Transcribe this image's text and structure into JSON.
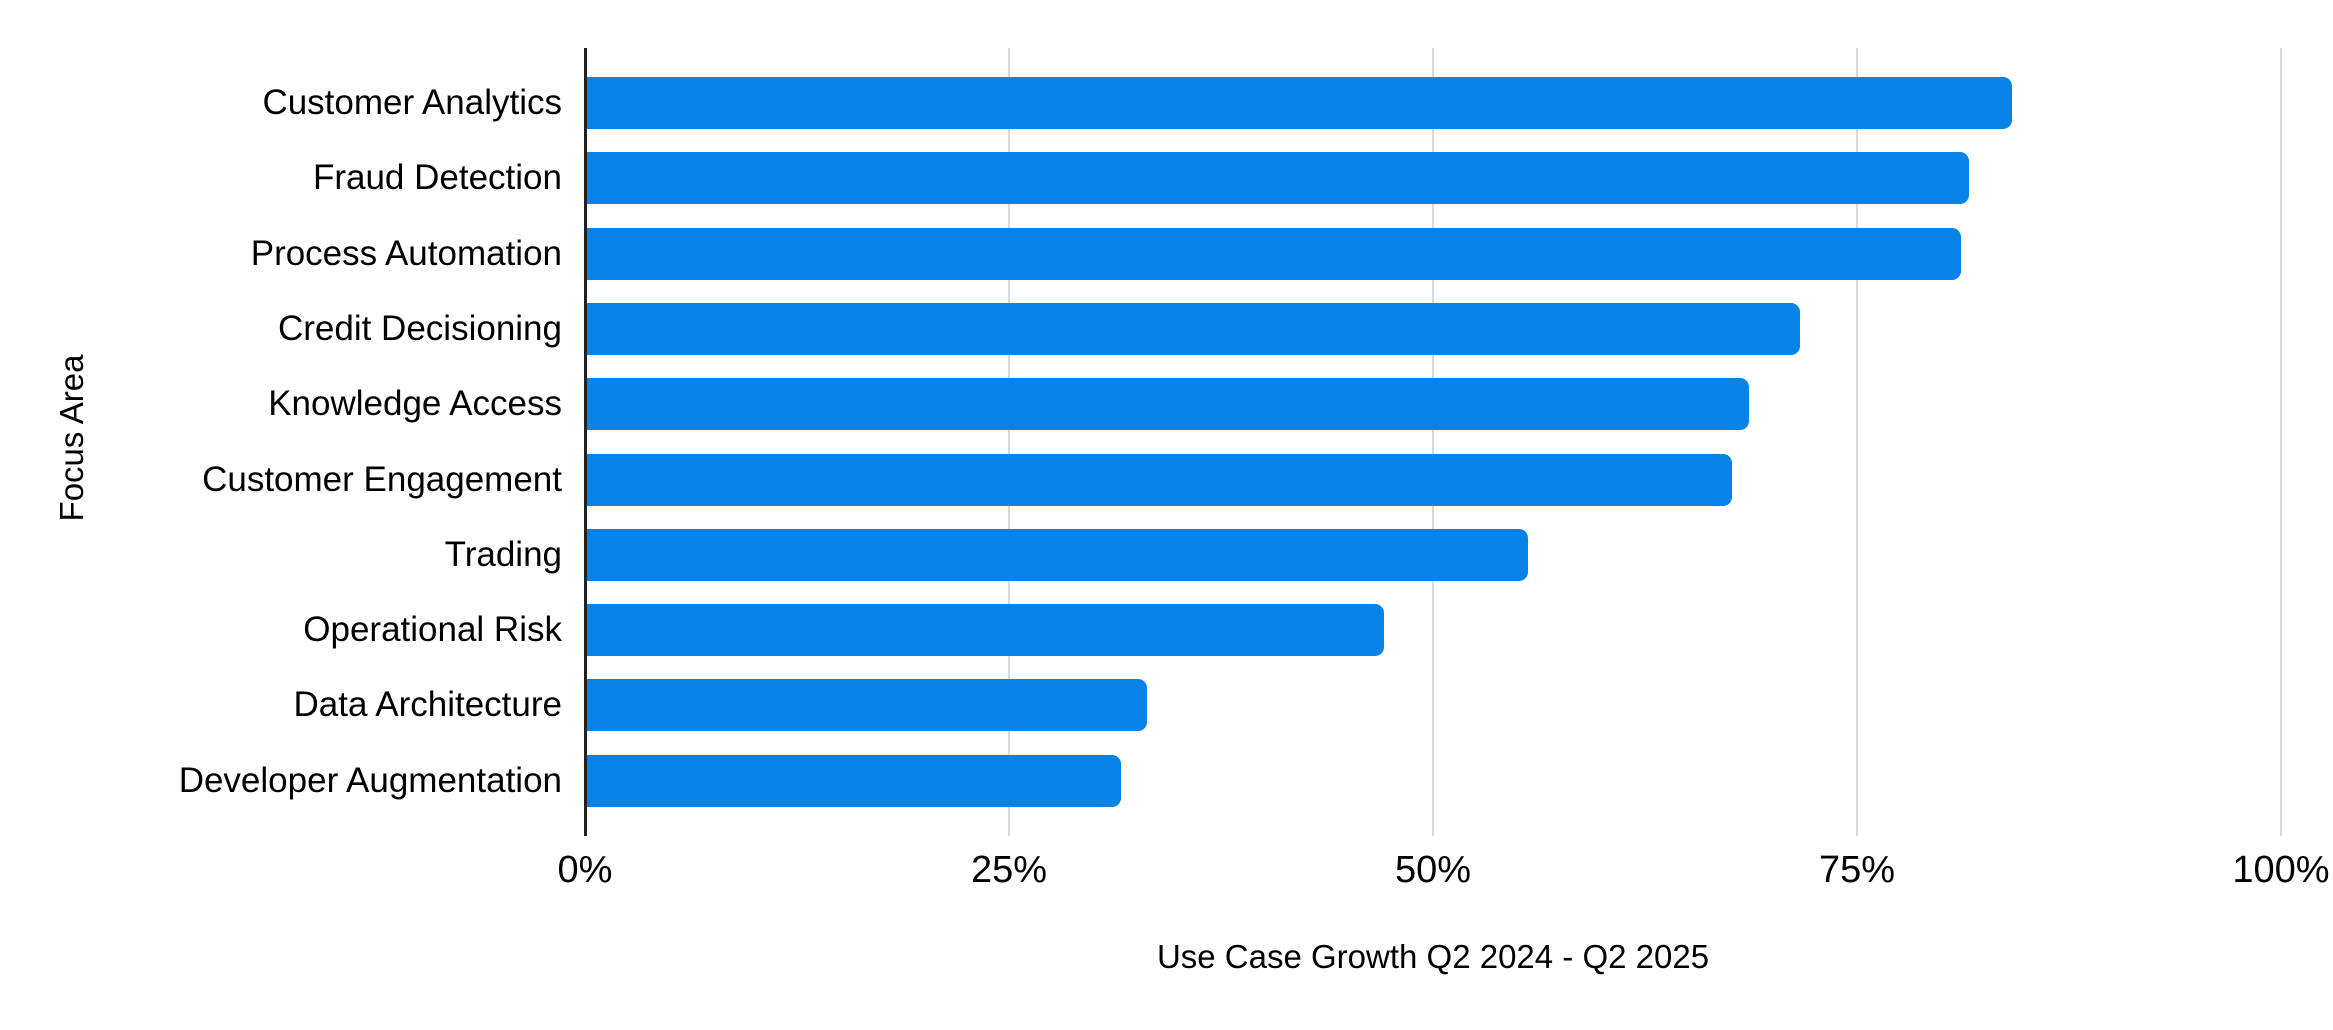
{
  "chart_data": {
    "type": "bar",
    "orientation": "horizontal",
    "title": "",
    "xlabel": "Use Case Growth Q2 2024 - Q2 2025",
    "ylabel": "Focus Area",
    "categories": [
      "Customer Analytics",
      "Fraud Detection",
      "Process Automation",
      "Credit Decisioning",
      "Knowledge Access",
      "Customer Engagement",
      "Trading",
      "Operational Risk",
      "Data Architecture",
      "Developer Augmentation"
    ],
    "values": [
      84,
      81.5,
      81,
      71.5,
      68.5,
      67.5,
      55.5,
      47,
      33,
      31.5
    ],
    "value_unit": "%",
    "xlim": [
      0,
      100
    ],
    "x_ticks": [
      {
        "value": 0,
        "label": "0%"
      },
      {
        "value": 25,
        "label": "25%"
      },
      {
        "value": 50,
        "label": "50%"
      },
      {
        "value": 75,
        "label": "75%"
      },
      {
        "value": 100,
        "label": "100%"
      }
    ],
    "grid": true,
    "legend": false,
    "colors": {
      "bar": "#0882e6",
      "gridline": "#d9d9d9",
      "axis_line": "#212121",
      "text": "#000000",
      "background": "#ffffff"
    }
  }
}
